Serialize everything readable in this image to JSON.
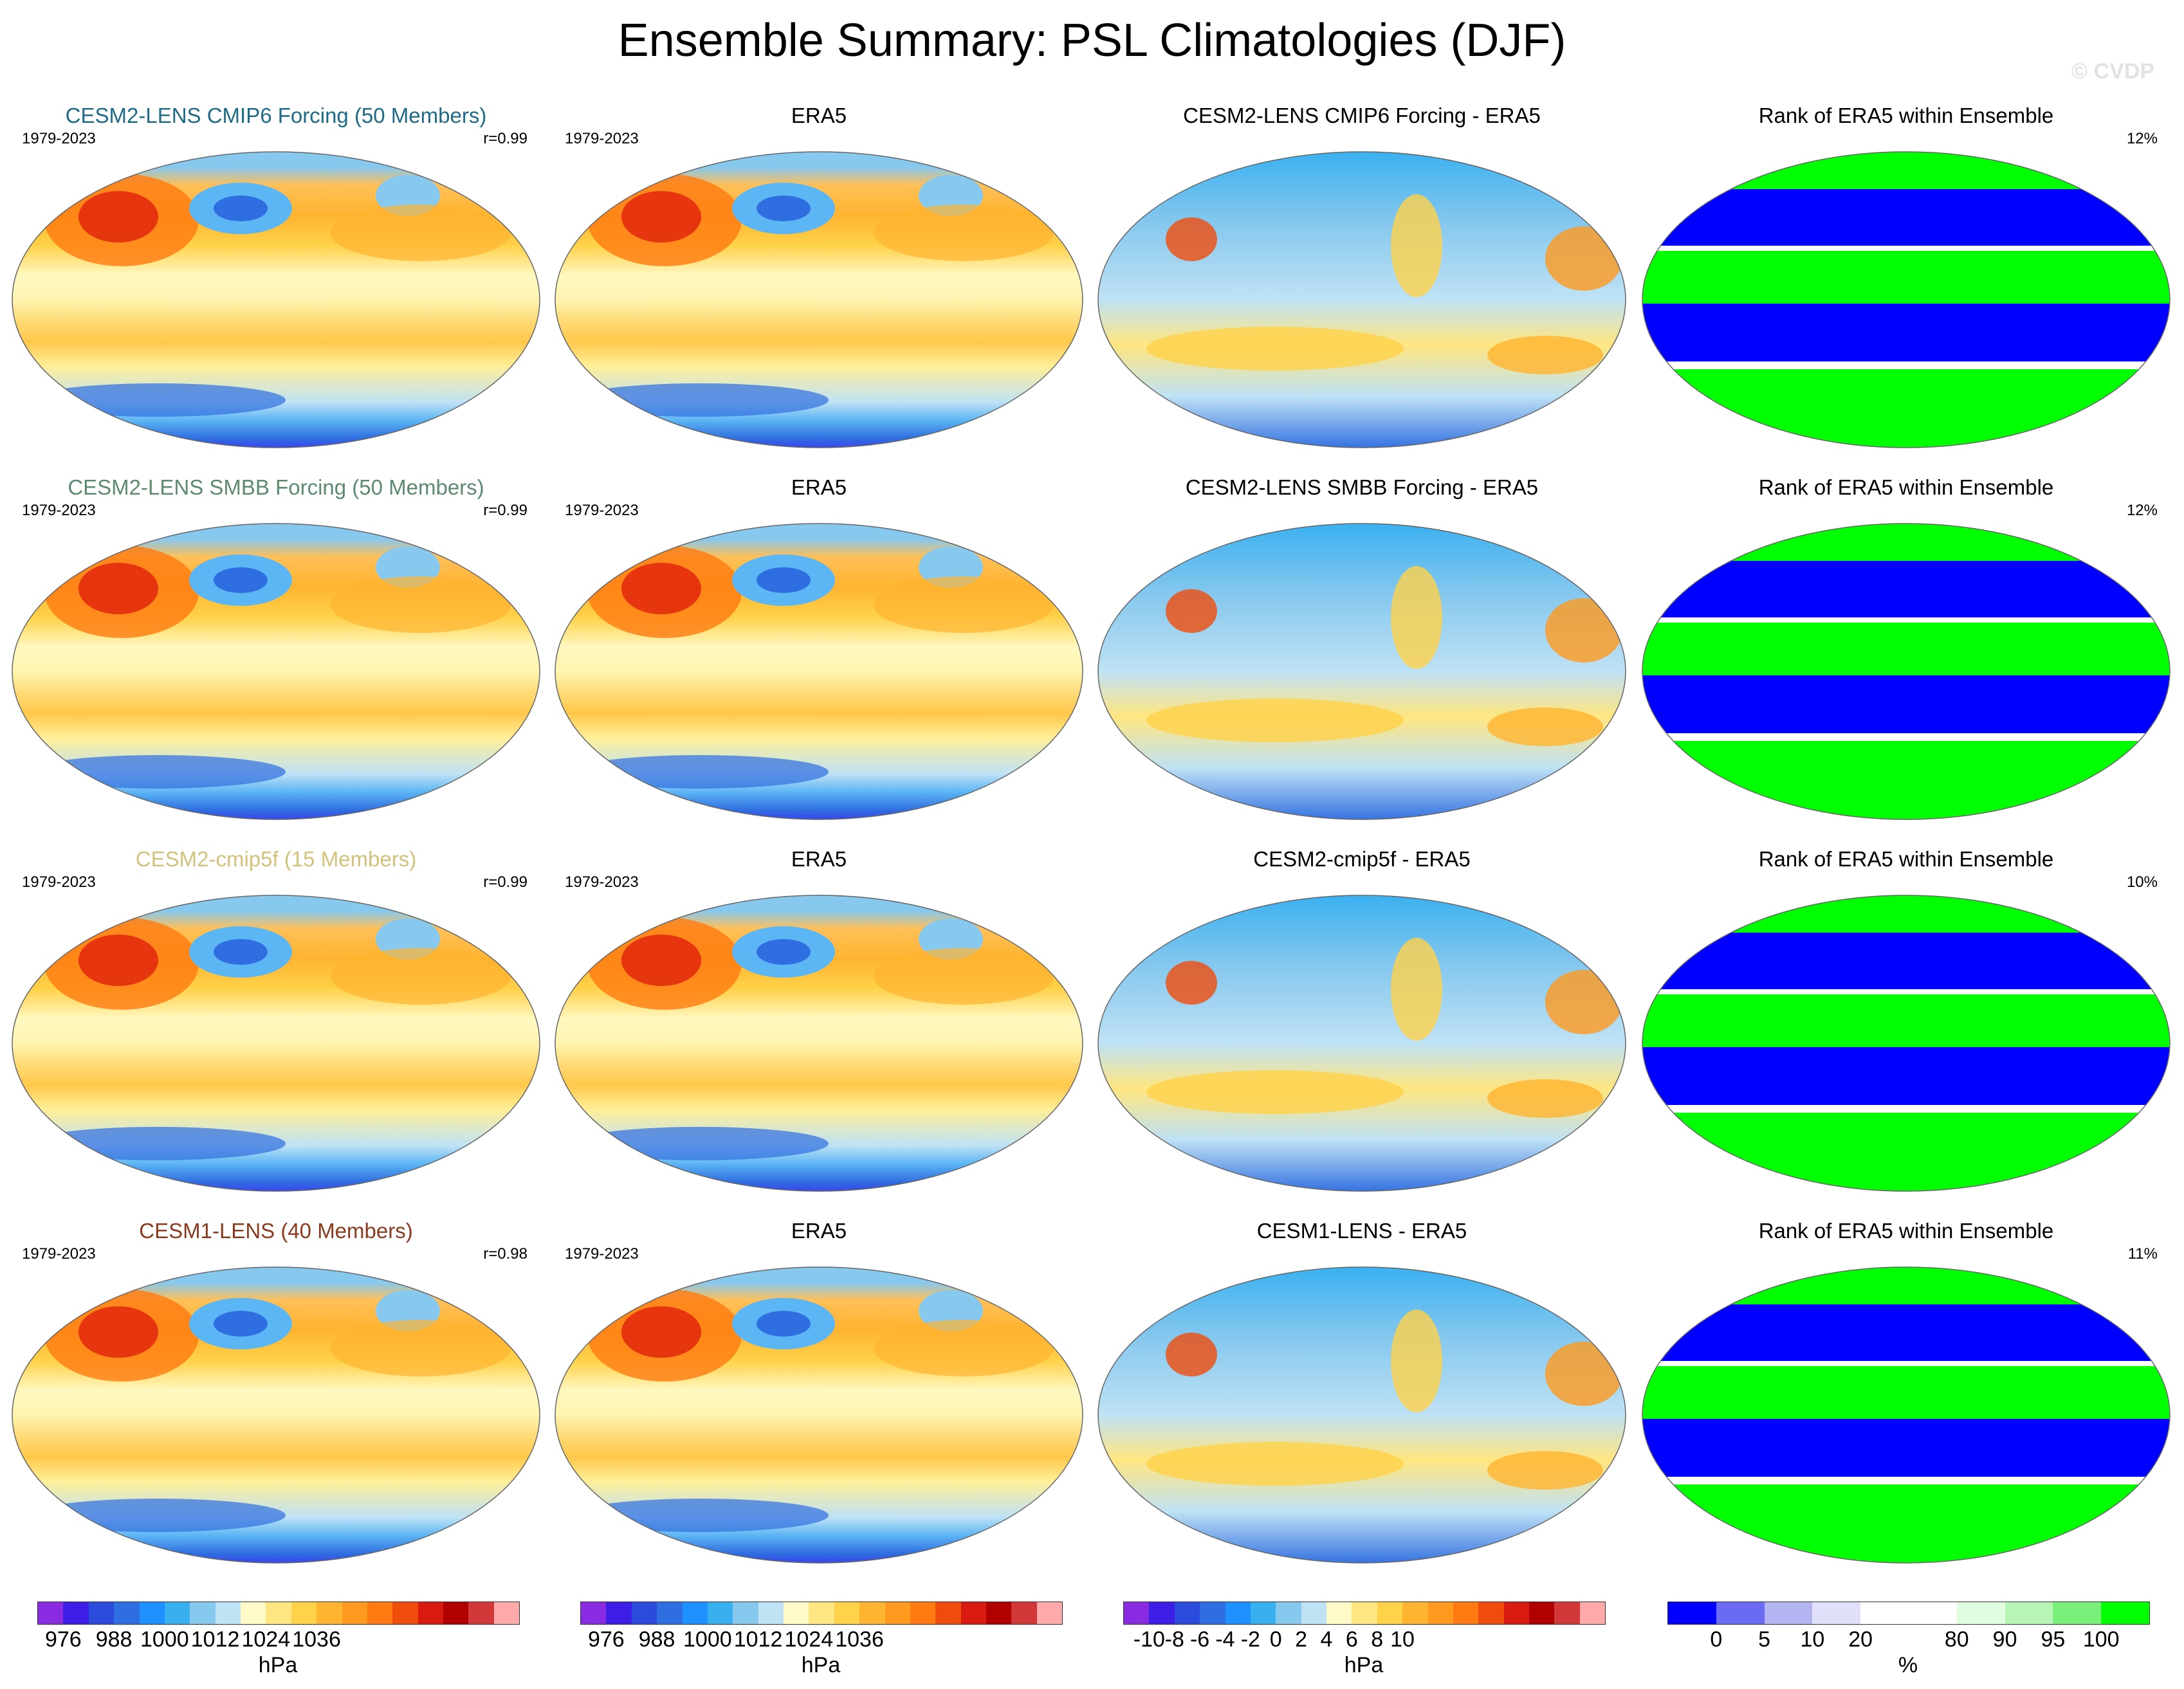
{
  "title": "Ensemble Summary: PSL Climatologies (DJF)",
  "watermark": "© CVDP",
  "rows": [
    {
      "model": {
        "title": "CESM2-LENS CMIP6 Forcing (50 Members)",
        "title_color": "#1d6b87",
        "years": "1979-2023",
        "corr": "r=0.99"
      },
      "obs": {
        "title": "ERA5",
        "years": "1979-2023"
      },
      "diff": {
        "title": "CESM2-LENS CMIP6 Forcing - ERA5"
      },
      "rank": {
        "title": "Rank of ERA5 within Ensemble",
        "pct": "12%"
      }
    },
    {
      "model": {
        "title": "CESM2-LENS SMBB Forcing (50 Members)",
        "title_color": "#5c8a6f",
        "years": "1979-2023",
        "corr": "r=0.99"
      },
      "obs": {
        "title": "ERA5",
        "years": "1979-2023"
      },
      "diff": {
        "title": "CESM2-LENS SMBB Forcing - ERA5"
      },
      "rank": {
        "title": "Rank of ERA5 within Ensemble",
        "pct": "12%"
      }
    },
    {
      "model": {
        "title": "CESM2-cmip5f (15 Members)",
        "title_color": "#d2c27a",
        "years": "1979-2023",
        "corr": "r=0.99"
      },
      "obs": {
        "title": "ERA5",
        "years": "1979-2023"
      },
      "diff": {
        "title": "CESM2-cmip5f - ERA5"
      },
      "rank": {
        "title": "Rank of ERA5 within Ensemble",
        "pct": "10%"
      }
    },
    {
      "model": {
        "title": "CESM1-LENS (40 Members)",
        "title_color": "#8b3a1e",
        "years": "1979-2023",
        "corr": "r=0.98"
      },
      "obs": {
        "title": "ERA5",
        "years": "1979-2023"
      },
      "diff": {
        "title": "CESM1-LENS - ERA5"
      },
      "rank": {
        "title": "Rank of ERA5 within Ensemble",
        "pct": "11%"
      }
    }
  ],
  "colorbars": [
    {
      "name": "psl",
      "units": "hPa",
      "colors": [
        "#8a2be2",
        "#3c1ee6",
        "#2a4bdc",
        "#2f6ee0",
        "#1e90ff",
        "#38b0f0",
        "#87c8ee",
        "#bfe2f5",
        "#fffbc8",
        "#ffe680",
        "#ffd24a",
        "#ffb430",
        "#ff9a1e",
        "#ff7a10",
        "#f04c0c",
        "#d81a10",
        "#b00000",
        "#d23838",
        "#ffaaaa"
      ],
      "labels": [
        "976",
        "988",
        "1000",
        "1012",
        "1024",
        "1036"
      ],
      "label_boundaries": [
        1,
        3,
        5,
        7,
        9,
        11
      ]
    },
    {
      "name": "psl-obs",
      "units": "hPa",
      "colors": [
        "#8a2be2",
        "#3c1ee6",
        "#2a4bdc",
        "#2f6ee0",
        "#1e90ff",
        "#38b0f0",
        "#87c8ee",
        "#bfe2f5",
        "#fffbc8",
        "#ffe680",
        "#ffd24a",
        "#ffb430",
        "#ff9a1e",
        "#ff7a10",
        "#f04c0c",
        "#d81a10",
        "#b00000",
        "#d23838",
        "#ffaaaa"
      ],
      "labels": [
        "976",
        "988",
        "1000",
        "1012",
        "1024",
        "1036"
      ],
      "label_boundaries": [
        1,
        3,
        5,
        7,
        9,
        11
      ]
    },
    {
      "name": "diff",
      "units": "hPa",
      "colors": [
        "#8a2be2",
        "#3c1ee6",
        "#2a4bdc",
        "#2f6ee0",
        "#1e90ff",
        "#38b0f0",
        "#87c8ee",
        "#bfe2f5",
        "#fffbc8",
        "#ffe680",
        "#ffd24a",
        "#ffb430",
        "#ff9a1e",
        "#ff7a10",
        "#f04c0c",
        "#d81a10",
        "#b00000",
        "#d23838",
        "#ffaaaa"
      ],
      "labels": [
        "-10",
        "-8",
        "-6",
        "-4",
        "-2",
        "0",
        "2",
        "4",
        "6",
        "8",
        "10"
      ],
      "label_boundaries": [
        1,
        2,
        3,
        4,
        5,
        6,
        7,
        8,
        9,
        10,
        11
      ]
    },
    {
      "name": "rank",
      "units": "%",
      "colors": [
        "#0000ff",
        "#6a6af2",
        "#b4b4f2",
        "#e0e0fa",
        "#ffffff",
        "#ffffff",
        "#e0fde0",
        "#b6f5b6",
        "#7aef7a",
        "#00ff00"
      ],
      "labels": [
        "0",
        "5",
        "10",
        "20",
        "80",
        "90",
        "95",
        "100"
      ],
      "label_boundaries": [
        1,
        2,
        3,
        4,
        6,
        7,
        8,
        9
      ]
    }
  ]
}
